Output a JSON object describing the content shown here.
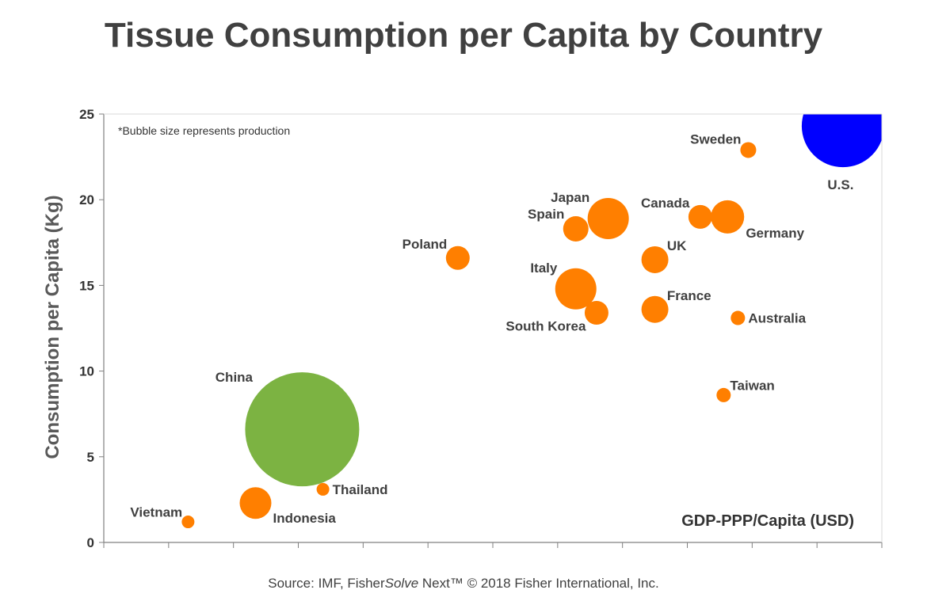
{
  "title": "Tissue Consumption per Capita by Country",
  "source": {
    "prefix": "Source: IMF, Fisher",
    "italic": "Solve",
    "suffix": " Next™ © 2018 Fisher International, Inc."
  },
  "chart_data": {
    "type": "scatter",
    "title": "Tissue Consumption per Capita by Country",
    "xlabel": "GDP-PPP/Capita (USD)",
    "ylabel": "Consumption per Capita (Kg)",
    "note": "*Bubble size represents production",
    "ylim": [
      0,
      25
    ],
    "yticks": [
      "0",
      "5",
      "10",
      "15",
      "20",
      "25"
    ],
    "xlim": [
      0,
      60
    ],
    "xtick_count": 12,
    "grid": false,
    "colors": {
      "default": "#FF7F00",
      "China": "#7CB342",
      "U.S.": "#0000FF"
    },
    "points": [
      {
        "name": "Vietnam",
        "x": 6.5,
        "y": 1.2,
        "r": 8,
        "label_pos": "left-up"
      },
      {
        "name": "Indonesia",
        "x": 11.7,
        "y": 2.3,
        "r": 20,
        "label_pos": "right-down"
      },
      {
        "name": "China",
        "x": 15.3,
        "y": 6.6,
        "r": 72,
        "label_pos": "china",
        "color": "#7CB342"
      },
      {
        "name": "Thailand",
        "x": 16.9,
        "y": 3.1,
        "r": 8,
        "label_pos": "right"
      },
      {
        "name": "Poland",
        "x": 27.3,
        "y": 16.6,
        "r": 15,
        "label_pos": "left-up"
      },
      {
        "name": "Italy",
        "x": 36.4,
        "y": 14.8,
        "r": 26,
        "label_pos": "left-up"
      },
      {
        "name": "South Korea",
        "x": 38.0,
        "y": 13.4,
        "r": 15,
        "label_pos": "left-down"
      },
      {
        "name": "Spain",
        "x": 36.4,
        "y": 18.3,
        "r": 16,
        "label_pos": "left-up"
      },
      {
        "name": "Japan",
        "x": 38.9,
        "y": 18.9,
        "r": 26,
        "label_pos": "left-up"
      },
      {
        "name": "UK",
        "x": 42.5,
        "y": 16.5,
        "r": 17,
        "label_pos": "right-up"
      },
      {
        "name": "France",
        "x": 42.5,
        "y": 13.6,
        "r": 17,
        "label_pos": "right-up"
      },
      {
        "name": "Canada",
        "x": 46.0,
        "y": 19.0,
        "r": 15,
        "label_pos": "left-up"
      },
      {
        "name": "Germany",
        "x": 48.1,
        "y": 19.0,
        "r": 21,
        "label_pos": "right-down"
      },
      {
        "name": "Taiwan",
        "x": 47.8,
        "y": 8.6,
        "r": 9,
        "label_pos": "right-up"
      },
      {
        "name": "Australia",
        "x": 48.9,
        "y": 13.1,
        "r": 9,
        "label_pos": "right"
      },
      {
        "name": "Sweden",
        "x": 49.7,
        "y": 22.9,
        "r": 10,
        "label_pos": "left-up"
      },
      {
        "name": "U.S.",
        "x": 57.0,
        "y": 24.3,
        "r": 52,
        "label_pos": "us",
        "color": "#0000FF"
      }
    ]
  }
}
